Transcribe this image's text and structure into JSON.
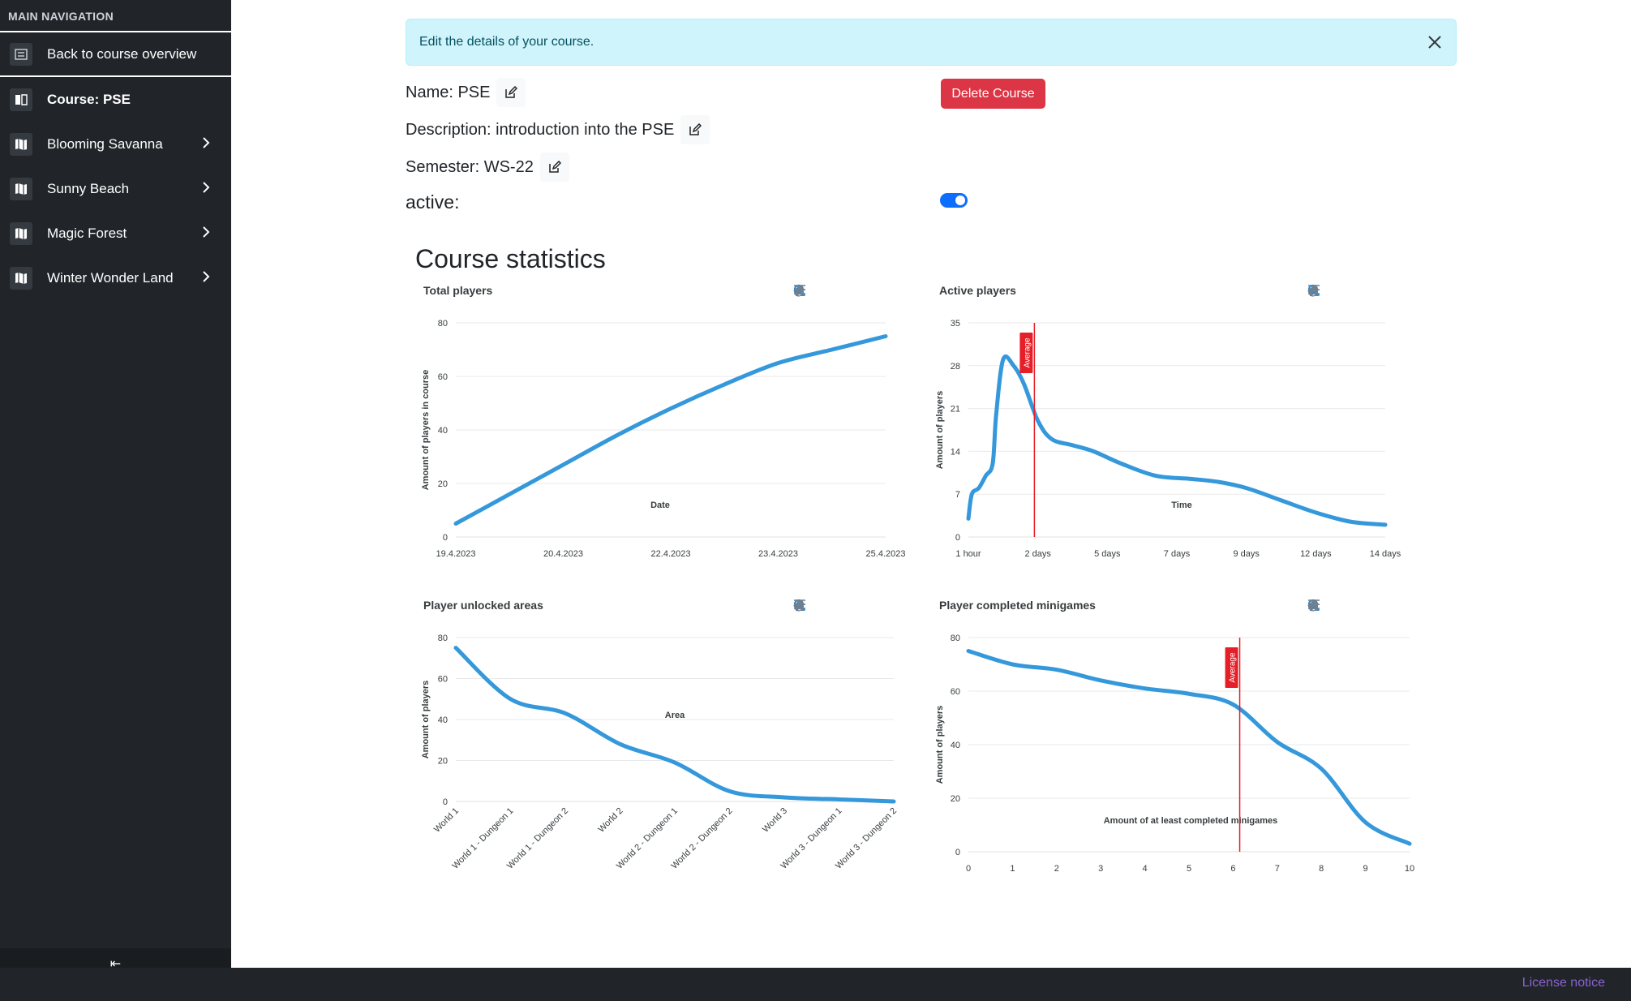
{
  "sidebar": {
    "heading": "MAIN NAVIGATION",
    "back_label": "Back to course overview",
    "items": [
      {
        "label": "Course: PSE",
        "icon": "book-open-icon",
        "active": true,
        "chevron": false
      },
      {
        "label": "Blooming Savanna",
        "icon": "map-icon",
        "chevron": true
      },
      {
        "label": "Sunny Beach",
        "icon": "map-icon",
        "chevron": true
      },
      {
        "label": "Magic Forest",
        "icon": "map-icon",
        "chevron": true
      },
      {
        "label": "Winter Wonder Land",
        "icon": "map-icon",
        "chevron": true
      }
    ],
    "collapse_glyph": "⇤"
  },
  "alert": {
    "text": "Edit the details of your course."
  },
  "course": {
    "name": "Name: PSE",
    "description": "Description: introduction into the PSE",
    "semester": "Semester: WS-22",
    "active_label": "active:",
    "active": true,
    "delete_label": "Delete Course"
  },
  "stats_title": "Course statistics",
  "footer": {
    "license": "License notice"
  },
  "colors": {
    "series": "#3498db",
    "average": "#e61e28",
    "danger": "#dc3545",
    "primary": "#0d6efd"
  },
  "chart_data": [
    {
      "id": "total-players",
      "type": "line",
      "title": "Total players",
      "xlabel": "Date",
      "ylabel": "Amount of players in course",
      "categories": [
        "19.4.2023",
        "20.4.2023",
        "22.4.2023",
        "23.4.2023",
        "25.4.2023"
      ],
      "x": [
        0,
        0.5,
        1,
        1.5,
        2,
        2.5,
        3,
        3.5,
        4
      ],
      "y": [
        5,
        16,
        27,
        38,
        48,
        57,
        65,
        70,
        75
      ],
      "ylim": [
        0,
        80
      ],
      "yticks": [
        0,
        20,
        40,
        60,
        80
      ],
      "grid": true
    },
    {
      "id": "active-players",
      "type": "line",
      "title": "Active players",
      "xlabel": "Time",
      "ylabel": "Amount of players",
      "categories": [
        "1 hour",
        "2 days",
        "5 days",
        "7 days",
        "9 days",
        "12 days",
        "14 days"
      ],
      "x": [
        0,
        0.05,
        0.15,
        0.25,
        0.35,
        0.4,
        0.5,
        0.65,
        0.8,
        1,
        1.2,
        1.5,
        1.8,
        2.2,
        2.7,
        3.2,
        3.6,
        4,
        4.5,
        5,
        5.5,
        6
      ],
      "y": [
        3,
        7,
        8,
        10,
        12,
        20,
        29,
        28,
        25,
        19,
        16,
        15,
        14,
        12,
        10,
        9.5,
        9,
        8,
        6,
        4,
        2.5,
        2
      ],
      "ylim": [
        0,
        35
      ],
      "yticks": [
        0,
        7,
        14,
        21,
        28,
        35
      ],
      "average_x": 0.95,
      "average_label": "Average",
      "grid": true
    },
    {
      "id": "unlocked-areas",
      "type": "line",
      "title": "Player unlocked areas",
      "xlabel": "Area",
      "ylabel": "Amount of players",
      "categories": [
        "World 1",
        "World 1 - Dungeon 1",
        "World 1 - Dungeon 2",
        "World 2",
        "World 2 - Dungeon 1",
        "World 2 - Dungeon 2",
        "World 3",
        "World 3 - Dungeon 1",
        "World 3 - Dungeon 2"
      ],
      "y": [
        75,
        50,
        43,
        28,
        19,
        5,
        2,
        1,
        0
      ],
      "ylim": [
        0,
        80
      ],
      "yticks": [
        0,
        20,
        40,
        60,
        80
      ],
      "grid": true
    },
    {
      "id": "completed-minigames",
      "type": "line",
      "title": "Player completed minigames",
      "xlabel": "Amount of at least completed minigames",
      "ylabel": "Amount of players",
      "categories": [
        "0",
        "1",
        "2",
        "3",
        "4",
        "5",
        "6",
        "7",
        "8",
        "9",
        "10"
      ],
      "x": [
        0,
        1,
        2,
        3,
        4,
        5,
        6,
        7,
        8,
        9,
        10
      ],
      "y": [
        75,
        70,
        68,
        64,
        61,
        59,
        55,
        41,
        31,
        11,
        3
      ],
      "ylim": [
        0,
        80
      ],
      "yticks": [
        0,
        20,
        40,
        60,
        80
      ],
      "average_x": 6.15,
      "average_label": "Average",
      "grid": true
    }
  ]
}
